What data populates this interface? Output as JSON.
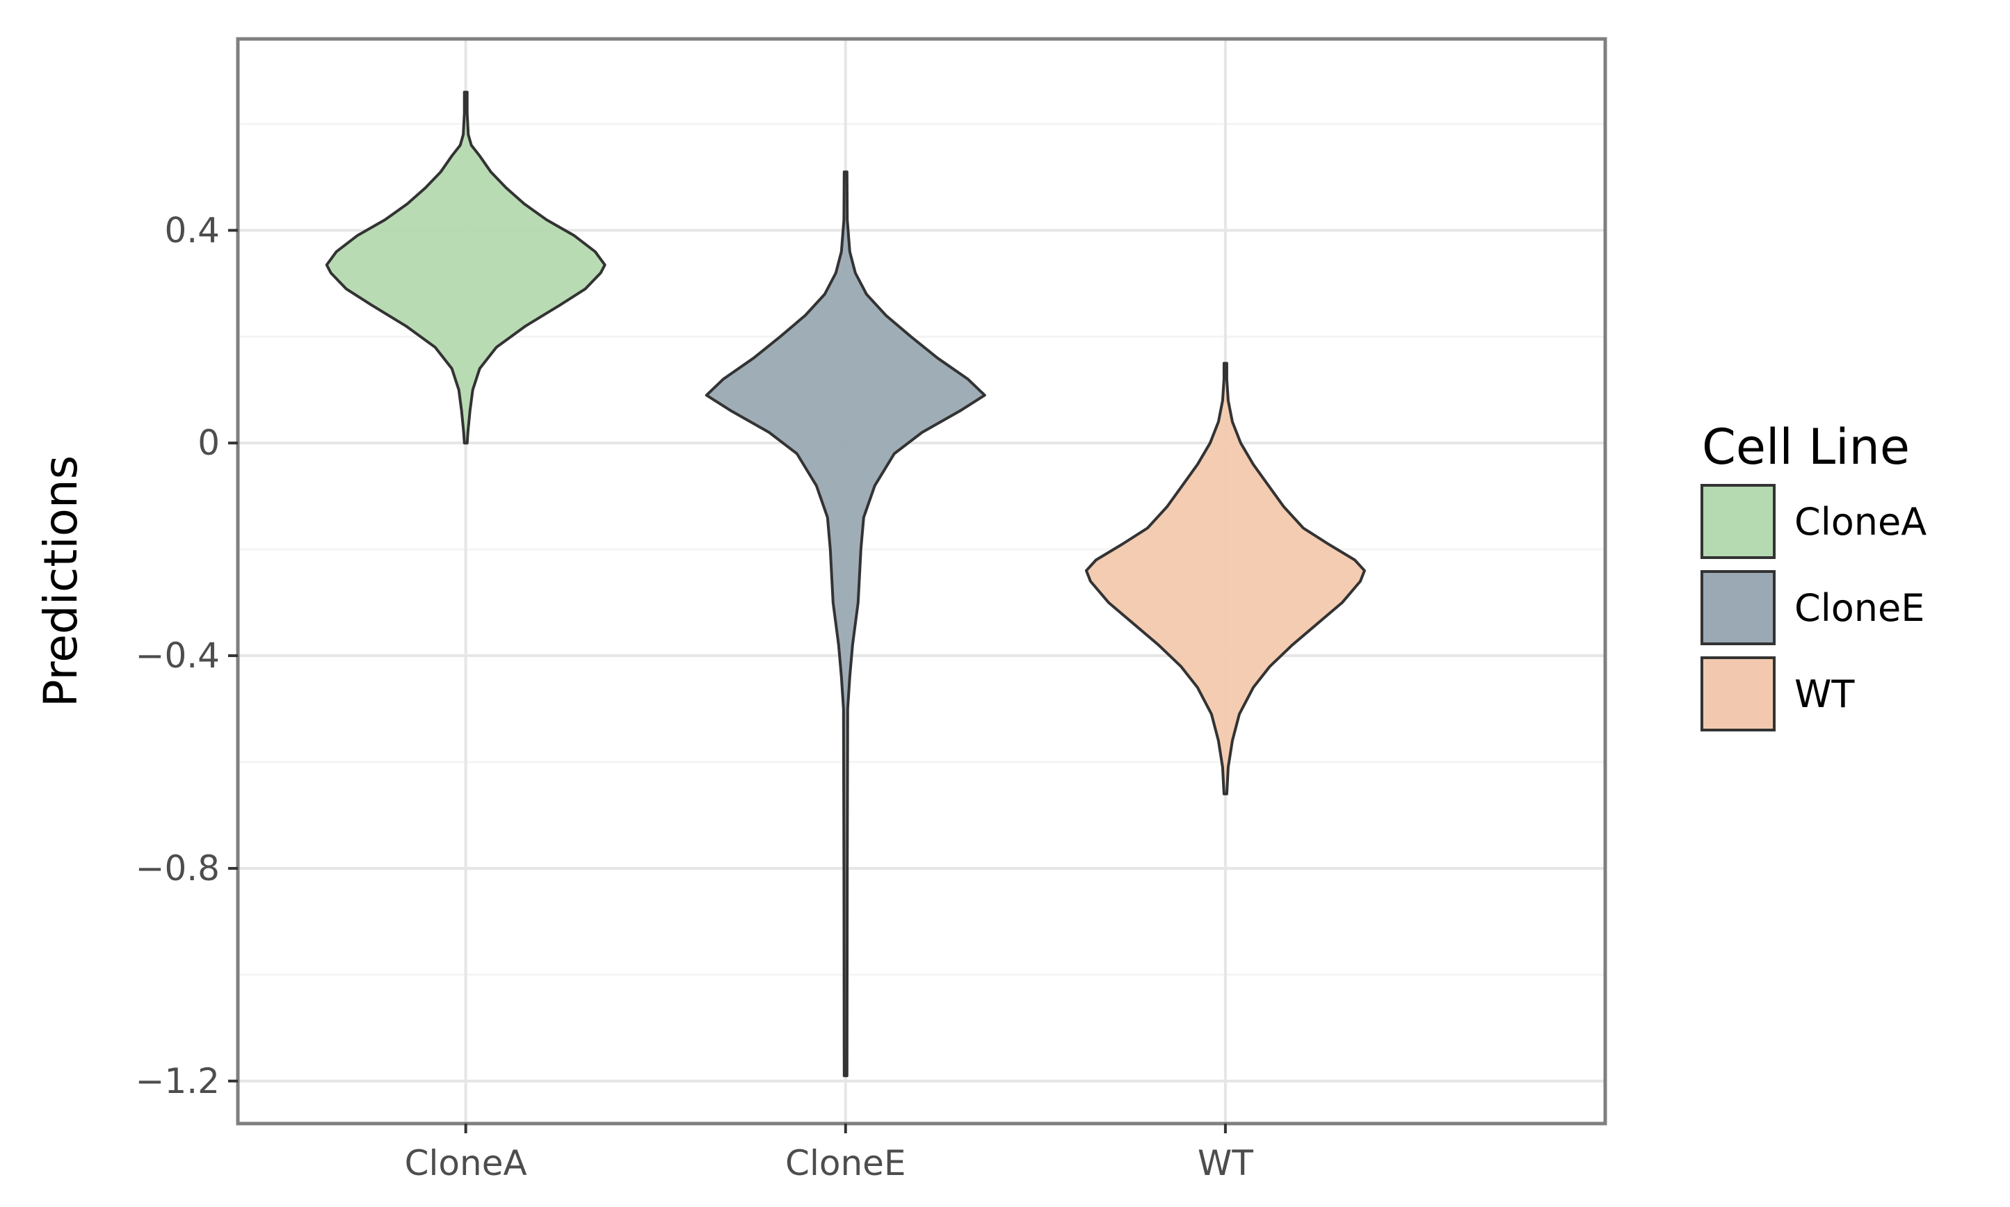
{
  "chart_data": {
    "type": "violin",
    "title": "",
    "xlabel": "",
    "ylabel": "Predictions",
    "ylim": [
      -1.28,
      0.76
    ],
    "yticks": [
      {
        "value": 0.4,
        "label": "0.4"
      },
      {
        "value": 0.0,
        "label": "0"
      },
      {
        "value": -0.4,
        "label": "−0.4"
      },
      {
        "value": -0.8,
        "label": "−0.8"
      },
      {
        "value": -1.2,
        "label": "−1.2"
      }
    ],
    "yminor": [
      0.6,
      0.2,
      -0.2,
      -0.6,
      -1.0
    ],
    "categories": [
      "CloneA",
      "CloneE",
      "WT"
    ],
    "grid": true,
    "legend": {
      "title": "Cell Line",
      "position": "right",
      "entries": [
        "CloneA",
        "CloneE",
        "WT"
      ]
    },
    "series": [
      {
        "name": "CloneA",
        "color": "#b5d9b0",
        "min": 0.0,
        "max": 0.66,
        "profile": [
          [
            0.0,
            0.0
          ],
          [
            0.02,
            0.015
          ],
          [
            0.06,
            0.03
          ],
          [
            0.1,
            0.05
          ],
          [
            0.14,
            0.1
          ],
          [
            0.18,
            0.22
          ],
          [
            0.22,
            0.43
          ],
          [
            0.26,
            0.68
          ],
          [
            0.29,
            0.86
          ],
          [
            0.32,
            0.97
          ],
          [
            0.335,
            1.0
          ],
          [
            0.36,
            0.93
          ],
          [
            0.39,
            0.78
          ],
          [
            0.42,
            0.58
          ],
          [
            0.45,
            0.42
          ],
          [
            0.48,
            0.29
          ],
          [
            0.51,
            0.18
          ],
          [
            0.54,
            0.1
          ],
          [
            0.56,
            0.04
          ],
          [
            0.58,
            0.018
          ],
          [
            0.62,
            0.01
          ],
          [
            0.66,
            0.0
          ]
        ]
      },
      {
        "name": "CloneE",
        "color": "#9aa9b3",
        "min": -1.19,
        "max": 0.51,
        "profile": [
          [
            -1.19,
            0.0
          ],
          [
            -0.8,
            0.012
          ],
          [
            -0.5,
            0.015
          ],
          [
            -0.44,
            0.03
          ],
          [
            -0.38,
            0.05
          ],
          [
            -0.3,
            0.09
          ],
          [
            -0.2,
            0.11
          ],
          [
            -0.14,
            0.13
          ],
          [
            -0.08,
            0.21
          ],
          [
            -0.02,
            0.35
          ],
          [
            0.02,
            0.55
          ],
          [
            0.06,
            0.82
          ],
          [
            0.09,
            1.0
          ],
          [
            0.12,
            0.88
          ],
          [
            0.16,
            0.66
          ],
          [
            0.2,
            0.47
          ],
          [
            0.24,
            0.29
          ],
          [
            0.28,
            0.15
          ],
          [
            0.32,
            0.07
          ],
          [
            0.36,
            0.03
          ],
          [
            0.42,
            0.012
          ],
          [
            0.51,
            0.0
          ]
        ]
      },
      {
        "name": "WT",
        "color": "#f2c9ae",
        "min": -0.66,
        "max": 0.15,
        "profile": [
          [
            -0.66,
            0.0
          ],
          [
            -0.61,
            0.02
          ],
          [
            -0.56,
            0.05
          ],
          [
            -0.51,
            0.1
          ],
          [
            -0.46,
            0.2
          ],
          [
            -0.42,
            0.32
          ],
          [
            -0.38,
            0.48
          ],
          [
            -0.34,
            0.66
          ],
          [
            -0.3,
            0.84
          ],
          [
            -0.26,
            0.97
          ],
          [
            -0.24,
            1.0
          ],
          [
            -0.22,
            0.93
          ],
          [
            -0.19,
            0.74
          ],
          [
            -0.16,
            0.56
          ],
          [
            -0.12,
            0.42
          ],
          [
            -0.08,
            0.31
          ],
          [
            -0.04,
            0.2
          ],
          [
            0.0,
            0.11
          ],
          [
            0.04,
            0.05
          ],
          [
            0.08,
            0.02
          ],
          [
            0.12,
            0.01
          ],
          [
            0.15,
            0.0
          ]
        ]
      }
    ]
  }
}
